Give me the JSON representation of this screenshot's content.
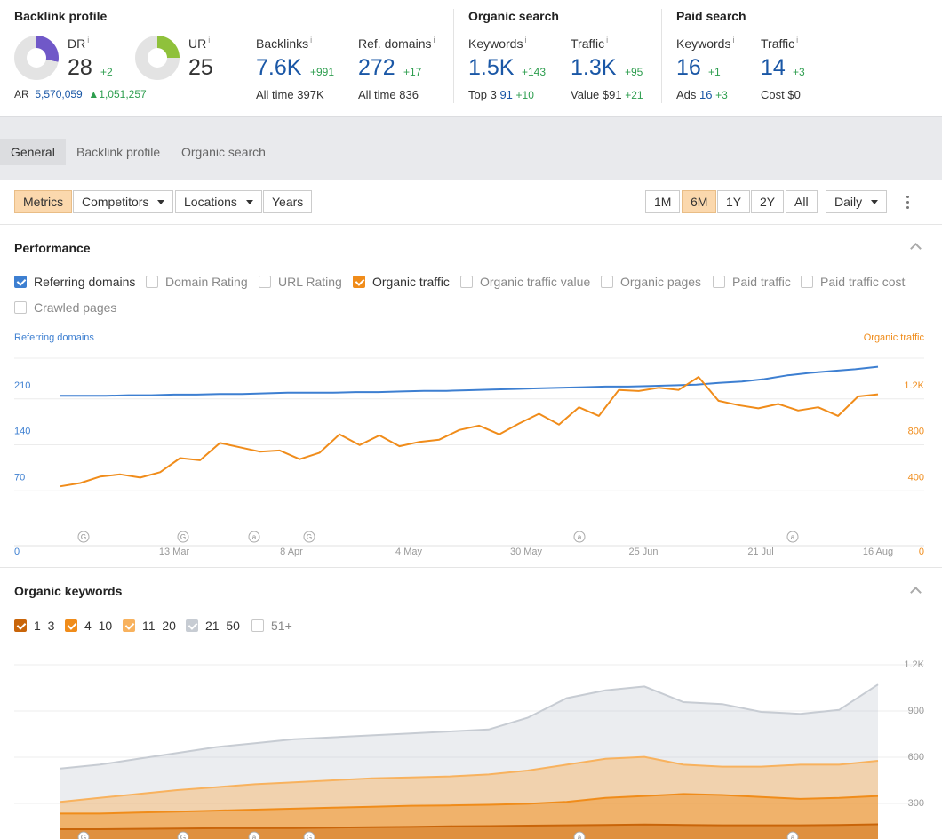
{
  "backlink_profile": {
    "title": "Backlink profile",
    "dr": {
      "label": "DR",
      "value": "28",
      "delta": "+2"
    },
    "ur": {
      "label": "UR",
      "value": "25"
    },
    "ar": {
      "label": "AR",
      "value": "5,570,059",
      "delta": "1,051,257"
    },
    "backlinks": {
      "label": "Backlinks",
      "value": "7.6K",
      "delta": "+991",
      "sub_label": "All time",
      "sub_value": "397K"
    },
    "ref_domains": {
      "label": "Ref. domains",
      "value": "272",
      "delta": "+17",
      "sub_label": "All time",
      "sub_value": "836"
    }
  },
  "organic_search": {
    "title": "Organic search",
    "keywords": {
      "label": "Keywords",
      "value": "1.5K",
      "delta": "+143",
      "sub_label": "Top 3",
      "sub_value": "91",
      "sub_delta": "+10"
    },
    "traffic": {
      "label": "Traffic",
      "value": "1.3K",
      "delta": "+95",
      "sub_label": "Value",
      "sub_value": "$91",
      "sub_delta": "+21"
    }
  },
  "paid_search": {
    "title": "Paid search",
    "keywords": {
      "label": "Keywords",
      "value": "16",
      "delta": "+1",
      "sub_label": "Ads",
      "sub_value": "16",
      "sub_delta": "+3"
    },
    "traffic": {
      "label": "Traffic",
      "value": "14",
      "delta": "+3",
      "sub_label": "Cost",
      "sub_value": "$0"
    }
  },
  "info_mark": "i",
  "tabs": [
    "General",
    "Backlink profile",
    "Organic search"
  ],
  "toolbar": {
    "metrics": "Metrics",
    "competitors": "Competitors",
    "locations": "Locations",
    "years": "Years",
    "ranges": [
      "1M",
      "6M",
      "1Y",
      "2Y",
      "All"
    ],
    "interval": "Daily"
  },
  "performance": {
    "title": "Performance",
    "checkboxes": [
      {
        "label": "Referring domains",
        "checked": true,
        "color": "#3d7fd1"
      },
      {
        "label": "Domain Rating",
        "checked": false
      },
      {
        "label": "URL Rating",
        "checked": false
      },
      {
        "label": "Organic traffic",
        "checked": true,
        "color": "#f08c1a"
      },
      {
        "label": "Organic traffic value",
        "checked": false
      },
      {
        "label": "Organic pages",
        "checked": false
      },
      {
        "label": "Paid traffic",
        "checked": false
      },
      {
        "label": "Paid traffic cost",
        "checked": false
      },
      {
        "label": "Crawled pages",
        "checked": false
      }
    ],
    "left_axis_title": "Referring domains",
    "right_axis_title": "Organic traffic",
    "markers": [
      "G",
      "G",
      "a",
      "G",
      "a",
      "a"
    ]
  },
  "organic_keywords": {
    "title": "Organic keywords",
    "legend": [
      {
        "label": "1–3",
        "checked": true,
        "color": "#c9650a"
      },
      {
        "label": "4–10",
        "checked": true,
        "color": "#f08c1a"
      },
      {
        "label": "11–20",
        "checked": true,
        "color": "#f8b25e"
      },
      {
        "label": "21–50",
        "checked": true,
        "color": "#c7ccd3"
      },
      {
        "label": "51+",
        "checked": false
      }
    ]
  },
  "chart_data": [
    {
      "type": "line",
      "title": "Performance",
      "x_tick_labels": [
        "13 Mar",
        "8 Apr",
        "4 May",
        "30 May",
        "25 Jun",
        "21 Jul",
        "16 Aug"
      ],
      "y_left": {
        "label": "Referring domains",
        "ticks": [
          "0",
          "70",
          "140",
          "210",
          "280"
        ],
        "range": [
          0,
          280
        ]
      },
      "y_right": {
        "label": "Organic traffic",
        "ticks": [
          "0",
          "400",
          "800",
          "1.2K",
          "1.6K"
        ],
        "range": [
          0,
          1600
        ]
      },
      "series": [
        {
          "name": "Referring domains",
          "axis": "left",
          "color": "#3d7fd1",
          "values": [
            225,
            225,
            225,
            226,
            226,
            227,
            227,
            228,
            228,
            229,
            230,
            230,
            230,
            231,
            231,
            232,
            233,
            233,
            234,
            235,
            236,
            237,
            238,
            239,
            240,
            240,
            241,
            242,
            243,
            246,
            248,
            252,
            258,
            262,
            265,
            268,
            272
          ]
        },
        {
          "name": "Organic traffic",
          "axis": "right",
          "color": "#f08c1a",
          "values": [
            450,
            480,
            540,
            560,
            530,
            580,
            710,
            690,
            850,
            810,
            770,
            780,
            700,
            760,
            930,
            830,
            920,
            820,
            860,
            880,
            970,
            1010,
            930,
            1030,
            1120,
            1020,
            1180,
            1100,
            1340,
            1330,
            1360,
            1340,
            1460,
            1240,
            1200,
            1170,
            1210,
            1150,
            1180,
            1100,
            1280,
            1300
          ]
        }
      ]
    },
    {
      "type": "area",
      "title": "Organic keywords",
      "y_ticks": [
        "300",
        "600",
        "900",
        "1.2K"
      ],
      "series": [
        {
          "name": "1–3",
          "color": "#c9650a",
          "values": [
            50,
            50,
            52,
            53,
            55,
            55,
            56,
            58,
            60,
            62,
            65,
            66,
            68,
            70,
            72,
            74,
            72,
            70,
            70,
            70,
            72,
            75
          ]
        },
        {
          "name": "4–10",
          "color": "#f08c1a",
          "values": [
            130,
            130,
            135,
            140,
            145,
            150,
            155,
            160,
            165,
            170,
            172,
            175,
            180,
            190,
            210,
            220,
            230,
            225,
            215,
            205,
            210,
            220
          ]
        },
        {
          "name": "11–20",
          "color": "#f8b25e",
          "values": [
            190,
            210,
            230,
            250,
            265,
            280,
            290,
            300,
            310,
            315,
            320,
            330,
            350,
            380,
            410,
            420,
            380,
            370,
            370,
            380,
            380,
            400
          ]
        },
        {
          "name": "21–50",
          "color": "#c7ccd3",
          "values": [
            360,
            380,
            410,
            440,
            470,
            490,
            510,
            520,
            530,
            540,
            550,
            560,
            620,
            720,
            760,
            780,
            700,
            690,
            650,
            640,
            660,
            790
          ]
        }
      ]
    }
  ]
}
